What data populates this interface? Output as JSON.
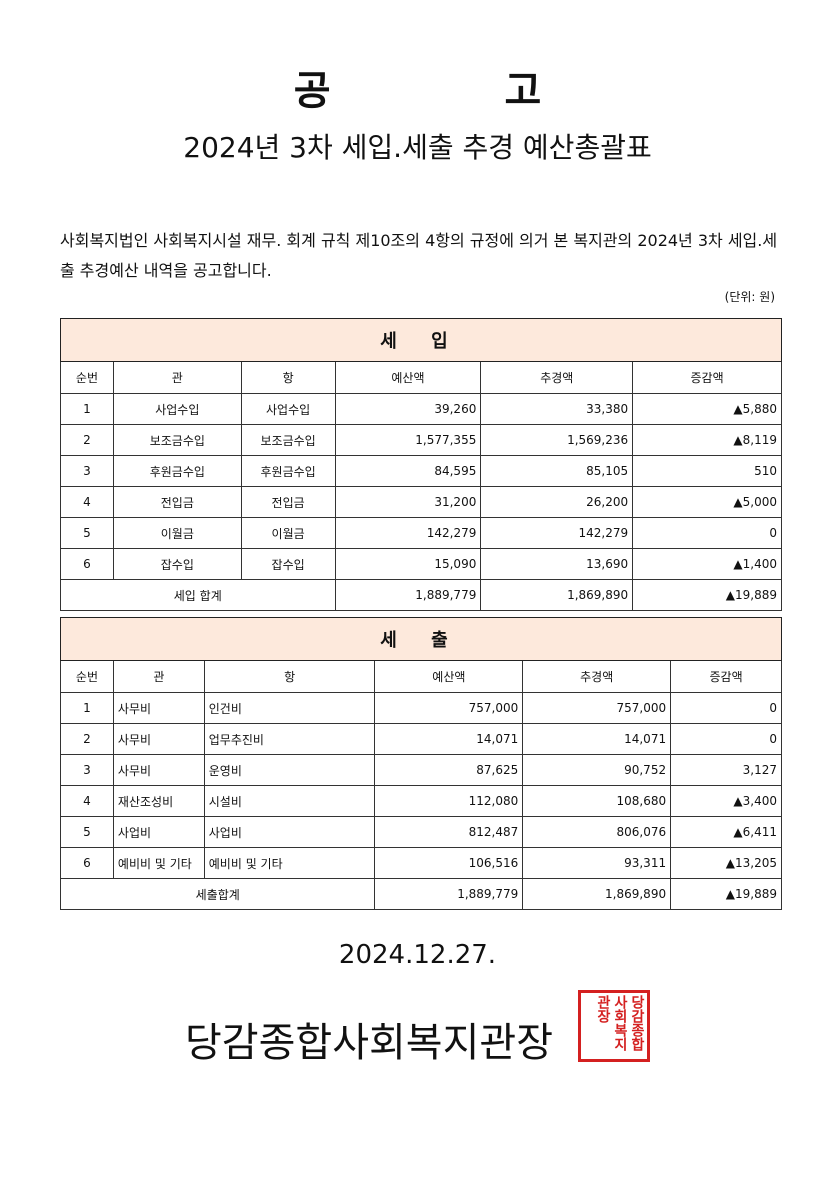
{
  "title": "공 고",
  "subtitle": "2024년 3차 세입.세출 추경 예산총괄표",
  "intro": "사회복지법인 사회복지시설 재무. 회계 규칙 제10조의 4항의 규정에 의거 본 복지관의 2024년 3차 세입.세출 추경예산 내역을 공고합니다.",
  "unit": "(단위: 원)",
  "columns": [
    "순번",
    "관",
    "항",
    "예산액",
    "추경액",
    "증감액"
  ],
  "revenue": {
    "heading": "세 입",
    "rows": [
      [
        "1",
        "사업수입",
        "사업수입",
        "39,260",
        "33,380",
        "▲5,880"
      ],
      [
        "2",
        "보조금수입",
        "보조금수입",
        "1,577,355",
        "1,569,236",
        "▲8,119"
      ],
      [
        "3",
        "후원금수입",
        "후원금수입",
        "84,595",
        "85,105",
        "510"
      ],
      [
        "4",
        "전입금",
        "전입금",
        "31,200",
        "26,200",
        "▲5,000"
      ],
      [
        "5",
        "이월금",
        "이월금",
        "142,279",
        "142,279",
        "0"
      ],
      [
        "6",
        "잡수입",
        "잡수입",
        "15,090",
        "13,690",
        "▲1,400"
      ]
    ],
    "total": [
      "세입 합계",
      "1,889,779",
      "1,869,890",
      "▲19,889"
    ]
  },
  "expense": {
    "heading": "세 출",
    "rows": [
      [
        "1",
        "사무비",
        "인건비",
        "757,000",
        "757,000",
        "0"
      ],
      [
        "2",
        "사무비",
        "업무추진비",
        "14,071",
        "14,071",
        "0"
      ],
      [
        "3",
        "사무비",
        "운영비",
        "87,625",
        "90,752",
        "3,127"
      ],
      [
        "4",
        "재산조성비",
        "시설비",
        "112,080",
        "108,680",
        "▲3,400"
      ],
      [
        "5",
        "사업비",
        "사업비",
        "812,487",
        "806,076",
        "▲6,411"
      ],
      [
        "6",
        "예비비 및 기타",
        "예비비 및 기타",
        "106,516",
        "93,311",
        "▲13,205"
      ]
    ],
    "total": [
      "세출합계",
      "1,889,779",
      "1,869,890",
      "▲19,889"
    ]
  },
  "date": "2024.12.27.",
  "organization": "당감종합사회복지관장",
  "seal": {
    "text": "당감종합사회복지관장",
    "color": "#d42020"
  },
  "colors": {
    "section_header": "#fde9dc"
  }
}
